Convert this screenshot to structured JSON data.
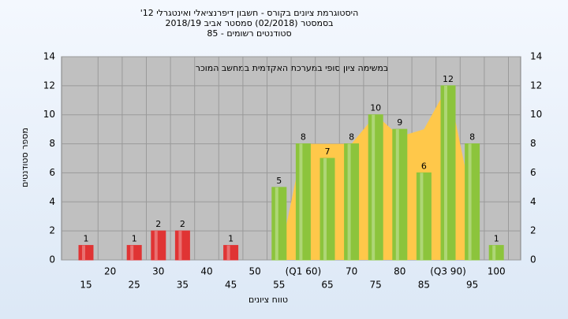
{
  "chart_data": {
    "type": "bar",
    "title": [
      "'היסטוגרמת ציונים בקורס - חשבון דיפרנציאלי ואינטגרלי 12",
      "בסמסטר  (02/2018)  סמסטר אביב 2018/19",
      "סטודנטים רשומים - 85"
    ],
    "annotation": "במשימה ציון סופי במערכת האקדמית במחשב המוכר",
    "x_label": "טווח ציונים",
    "y_label": "מספר סטודנטים",
    "categories": [
      "15",
      "20",
      "25",
      "30",
      "35",
      "40",
      "45",
      "50",
      "55",
      "(Q1 60)",
      "65",
      "70",
      "75",
      "80",
      "85",
      "(Q3 90)",
      "95",
      "100"
    ],
    "values": [
      1,
      null,
      1,
      2,
      2,
      null,
      1,
      null,
      5,
      8,
      7,
      8,
      10,
      9,
      6,
      12,
      8,
      1
    ],
    "colors": [
      "#e03434",
      null,
      "#e03434",
      "#e03434",
      "#e03434",
      null,
      "#e03434",
      null,
      "#8cc43c",
      "#8cc43c",
      "#8cc43c",
      "#8cc43c",
      "#8cc43c",
      "#8cc43c",
      "#8cc43c",
      "#8cc43c",
      "#8cc43c",
      "#8cc43c"
    ],
    "area_values": [
      null,
      null,
      null,
      null,
      null,
      null,
      null,
      null,
      0,
      8,
      8,
      8,
      10,
      8.5,
      9,
      12,
      4,
      null
    ],
    "area_color": "#ffc84a",
    "ylim": [
      0,
      14
    ],
    "yticks": [
      0,
      2,
      4,
      6,
      8,
      10,
      12,
      14
    ],
    "grid": true
  }
}
